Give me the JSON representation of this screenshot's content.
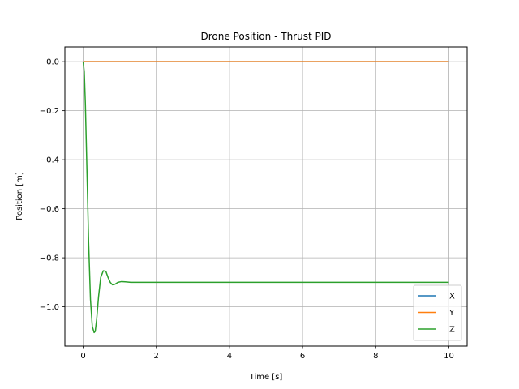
{
  "chart_data": {
    "type": "line",
    "title": "Drone Position - Thrust PID",
    "xlabel": "Time [s]",
    "ylabel": "Position [m]",
    "xlim": [
      -0.5,
      10.5
    ],
    "ylim": [
      -1.16,
      0.06
    ],
    "xticks": [
      0,
      2,
      4,
      6,
      8,
      10
    ],
    "xtick_labels": [
      "0",
      "2",
      "4",
      "6",
      "8",
      "10"
    ],
    "yticks": [
      0.0,
      -0.2,
      -0.4,
      -0.6,
      -0.8,
      -1.0
    ],
    "ytick_labels": [
      "0.0",
      "−0.2",
      "−0.4",
      "−0.6",
      "−0.8",
      "−1.0"
    ],
    "grid": true,
    "legend_position": "lower-right",
    "series": [
      {
        "name": "X",
        "color": "#1f77b4",
        "x": [
          0,
          10
        ],
        "y": [
          0.0,
          0.0
        ]
      },
      {
        "name": "Y",
        "color": "#ff7f0e",
        "x": [
          0,
          10
        ],
        "y": [
          0.0,
          0.0
        ]
      },
      {
        "name": "Z",
        "color": "#2ca02c",
        "x": [
          0,
          0.03,
          0.06,
          0.1,
          0.15,
          0.2,
          0.25,
          0.3,
          0.33,
          0.37,
          0.42,
          0.48,
          0.55,
          0.62,
          0.68,
          0.74,
          0.8,
          0.87,
          0.95,
          1.05,
          1.15,
          1.3,
          1.5,
          2.0,
          3.0,
          5.0,
          7.5,
          10
        ],
        "y": [
          0.0,
          -0.04,
          -0.17,
          -0.42,
          -0.74,
          -0.97,
          -1.08,
          -1.105,
          -1.1,
          -1.05,
          -0.96,
          -0.88,
          -0.853,
          -0.855,
          -0.88,
          -0.9,
          -0.91,
          -0.908,
          -0.9,
          -0.897,
          -0.898,
          -0.9,
          -0.9,
          -0.9,
          -0.9,
          -0.9,
          -0.9,
          -0.9
        ]
      }
    ]
  }
}
